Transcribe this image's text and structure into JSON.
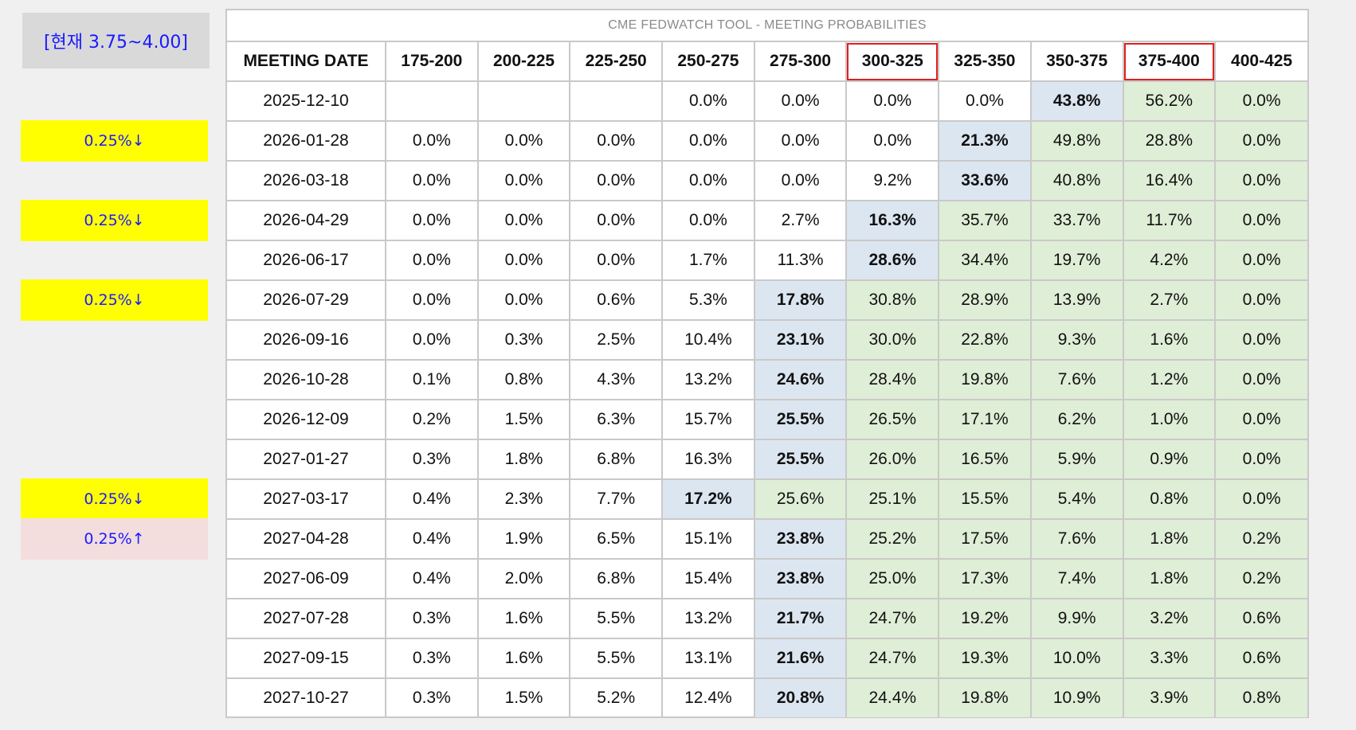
{
  "current_rate_label": "[현재 3.75~4.00]",
  "side_tags": [
    {
      "text": "0.25%↓",
      "kind": "down",
      "row": 1
    },
    {
      "text": "0.25%↓",
      "kind": "down",
      "row": 3
    },
    {
      "text": "0.25%↓",
      "kind": "down",
      "row": 5
    },
    {
      "text": "0.25%↓",
      "kind": "down",
      "row": 10
    },
    {
      "text": "0.25%↑",
      "kind": "up",
      "row": 11
    }
  ],
  "table": {
    "title": "CME FEDWATCH TOOL - MEETING PROBABILITIES",
    "headers": [
      "MEETING DATE",
      "175-200",
      "200-225",
      "225-250",
      "250-275",
      "275-300",
      "300-325",
      "325-350",
      "350-375",
      "375-400",
      "400-425"
    ],
    "highlighted_headers": [
      "300-325",
      "375-400"
    ],
    "rows": [
      {
        "date": "2025-12-10",
        "values": [
          "",
          "",
          "",
          "0.0%",
          "0.0%",
          "0.0%",
          "0.0%",
          "43.8%",
          "56.2%",
          "0.0%"
        ],
        "max": 8,
        "green_from": 9
      },
      {
        "date": "2026-01-28",
        "values": [
          "0.0%",
          "0.0%",
          "0.0%",
          "0.0%",
          "0.0%",
          "0.0%",
          "21.3%",
          "49.8%",
          "28.8%",
          "0.0%"
        ],
        "max": 7,
        "green_from": 8
      },
      {
        "date": "2026-03-18",
        "values": [
          "0.0%",
          "0.0%",
          "0.0%",
          "0.0%",
          "0.0%",
          "9.2%",
          "33.6%",
          "40.8%",
          "16.4%",
          "0.0%"
        ],
        "max": 7,
        "green_from": 8
      },
      {
        "date": "2026-04-29",
        "values": [
          "0.0%",
          "0.0%",
          "0.0%",
          "0.0%",
          "2.7%",
          "16.3%",
          "35.7%",
          "33.7%",
          "11.7%",
          "0.0%"
        ],
        "max": 6,
        "green_from": 7
      },
      {
        "date": "2026-06-17",
        "values": [
          "0.0%",
          "0.0%",
          "0.0%",
          "1.7%",
          "11.3%",
          "28.6%",
          "34.4%",
          "19.7%",
          "4.2%",
          "0.0%"
        ],
        "max": 6,
        "green_from": 7
      },
      {
        "date": "2026-07-29",
        "values": [
          "0.0%",
          "0.0%",
          "0.6%",
          "5.3%",
          "17.8%",
          "30.8%",
          "28.9%",
          "13.9%",
          "2.7%",
          "0.0%"
        ],
        "max": 5,
        "green_from": 6
      },
      {
        "date": "2026-09-16",
        "values": [
          "0.0%",
          "0.3%",
          "2.5%",
          "10.4%",
          "23.1%",
          "30.0%",
          "22.8%",
          "9.3%",
          "1.6%",
          "0.0%"
        ],
        "max": 5,
        "green_from": 6
      },
      {
        "date": "2026-10-28",
        "values": [
          "0.1%",
          "0.8%",
          "4.3%",
          "13.2%",
          "24.6%",
          "28.4%",
          "19.8%",
          "7.6%",
          "1.2%",
          "0.0%"
        ],
        "max": 5,
        "green_from": 6
      },
      {
        "date": "2026-12-09",
        "values": [
          "0.2%",
          "1.5%",
          "6.3%",
          "15.7%",
          "25.5%",
          "26.5%",
          "17.1%",
          "6.2%",
          "1.0%",
          "0.0%"
        ],
        "max": 5,
        "green_from": 6
      },
      {
        "date": "2027-01-27",
        "values": [
          "0.3%",
          "1.8%",
          "6.8%",
          "16.3%",
          "25.5%",
          "26.0%",
          "16.5%",
          "5.9%",
          "0.9%",
          "0.0%"
        ],
        "max": 5,
        "green_from": 6
      },
      {
        "date": "2027-03-17",
        "values": [
          "0.4%",
          "2.3%",
          "7.7%",
          "17.2%",
          "25.6%",
          "25.1%",
          "15.5%",
          "5.4%",
          "0.8%",
          "0.0%"
        ],
        "max": 4,
        "green_from": 5
      },
      {
        "date": "2027-04-28",
        "values": [
          "0.4%",
          "1.9%",
          "6.5%",
          "15.1%",
          "23.8%",
          "25.2%",
          "17.5%",
          "7.6%",
          "1.8%",
          "0.2%"
        ],
        "max": 5,
        "green_from": 6
      },
      {
        "date": "2027-06-09",
        "values": [
          "0.4%",
          "2.0%",
          "6.8%",
          "15.4%",
          "23.8%",
          "25.0%",
          "17.3%",
          "7.4%",
          "1.8%",
          "0.2%"
        ],
        "max": 5,
        "green_from": 6
      },
      {
        "date": "2027-07-28",
        "values": [
          "0.3%",
          "1.6%",
          "5.5%",
          "13.2%",
          "21.7%",
          "24.7%",
          "19.2%",
          "9.9%",
          "3.2%",
          "0.6%"
        ],
        "max": 5,
        "green_from": 6
      },
      {
        "date": "2027-09-15",
        "values": [
          "0.3%",
          "1.6%",
          "5.5%",
          "13.1%",
          "21.6%",
          "24.7%",
          "19.3%",
          "10.0%",
          "3.3%",
          "0.6%"
        ],
        "max": 5,
        "green_from": 6
      },
      {
        "date": "2027-10-27",
        "values": [
          "0.3%",
          "1.5%",
          "5.2%",
          "12.4%",
          "20.8%",
          "24.4%",
          "19.8%",
          "10.9%",
          "3.9%",
          "0.8%"
        ],
        "max": 5,
        "green_from": 6
      }
    ]
  },
  "colors": {
    "max_cell": "#dce6f1",
    "green_cell": "#dfeed6",
    "highlight_border": "#e0201f",
    "tag_down": "#ffff00",
    "tag_up": "#f3dddd",
    "tag_text": "#1a1aff"
  }
}
